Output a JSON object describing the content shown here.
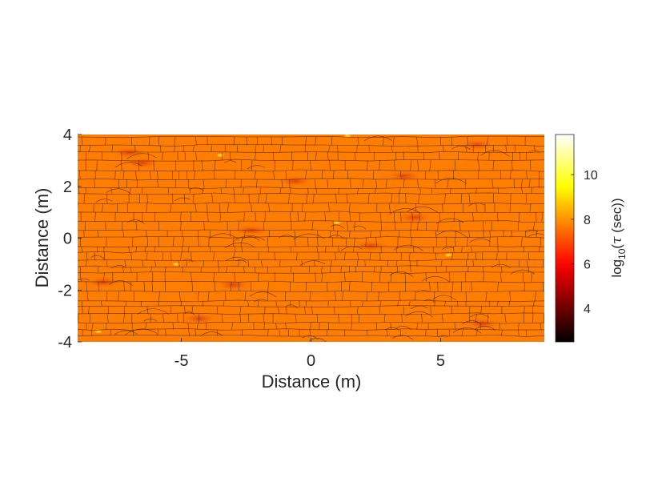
{
  "chart_data": {
    "type": "heatmap",
    "title": "",
    "xlabel": "Distance (m)",
    "ylabel": "Distance (m)",
    "xlim": [
      -9,
      9
    ],
    "ylim": [
      -4,
      4
    ],
    "x_ticks": [
      -5,
      0,
      5
    ],
    "x_tick_labels": [
      "-5",
      "0",
      "5"
    ],
    "y_ticks": [
      -4,
      -2,
      0,
      2,
      4
    ],
    "y_tick_labels": [
      "-4",
      "-2",
      "0",
      "2",
      "4"
    ],
    "grid": false,
    "colorbar": {
      "label_prefix": "log",
      "label_subscript": "10",
      "label_open": "(",
      "label_symbol": "τ",
      "label_suffix": " (sec))",
      "colormap": "hot",
      "range": [
        2.5,
        11.8
      ],
      "ticks": [
        4,
        6,
        8,
        10
      ],
      "tick_labels": [
        "4",
        "6",
        "8",
        "10"
      ]
    },
    "field": {
      "dominant_value": 7.7,
      "value_range": [
        6.5,
        11.5
      ],
      "description_color": "#f6820c"
    },
    "hot_spots": [
      {
        "x": -8.0,
        "y": -1.7,
        "value": 6.8
      },
      {
        "x": -4.3,
        "y": -3.1,
        "value": 6.9
      },
      {
        "x": -3.0,
        "y": -1.8,
        "value": 7.0
      },
      {
        "x": -6.5,
        "y": 2.9,
        "value": 7.0
      },
      {
        "x": 2.3,
        "y": -0.3,
        "value": 6.8
      },
      {
        "x": 4.0,
        "y": 0.8,
        "value": 7.0
      },
      {
        "x": 3.6,
        "y": 2.4,
        "value": 7.1
      },
      {
        "x": 6.4,
        "y": 3.6,
        "value": 7.1
      },
      {
        "x": 6.6,
        "y": -3.3,
        "value": 7.0
      },
      {
        "x": -2.3,
        "y": 0.3,
        "value": 7.2
      },
      {
        "x": -7.0,
        "y": 3.3,
        "value": 7.1
      },
      {
        "x": -0.6,
        "y": 2.2,
        "value": 7.2
      }
    ],
    "bright_spots": [
      {
        "x": 1.4,
        "y": 3.95,
        "value": 10.5
      },
      {
        "x": 5.3,
        "y": -0.65,
        "value": 9.8
      },
      {
        "x": -8.2,
        "y": -3.6,
        "value": 10.0
      },
      {
        "x": -5.2,
        "y": -1.0,
        "value": 9.5
      },
      {
        "x": 1.0,
        "y": 0.6,
        "value": 9.2
      },
      {
        "x": -3.5,
        "y": 3.2,
        "value": 9.0
      }
    ]
  }
}
